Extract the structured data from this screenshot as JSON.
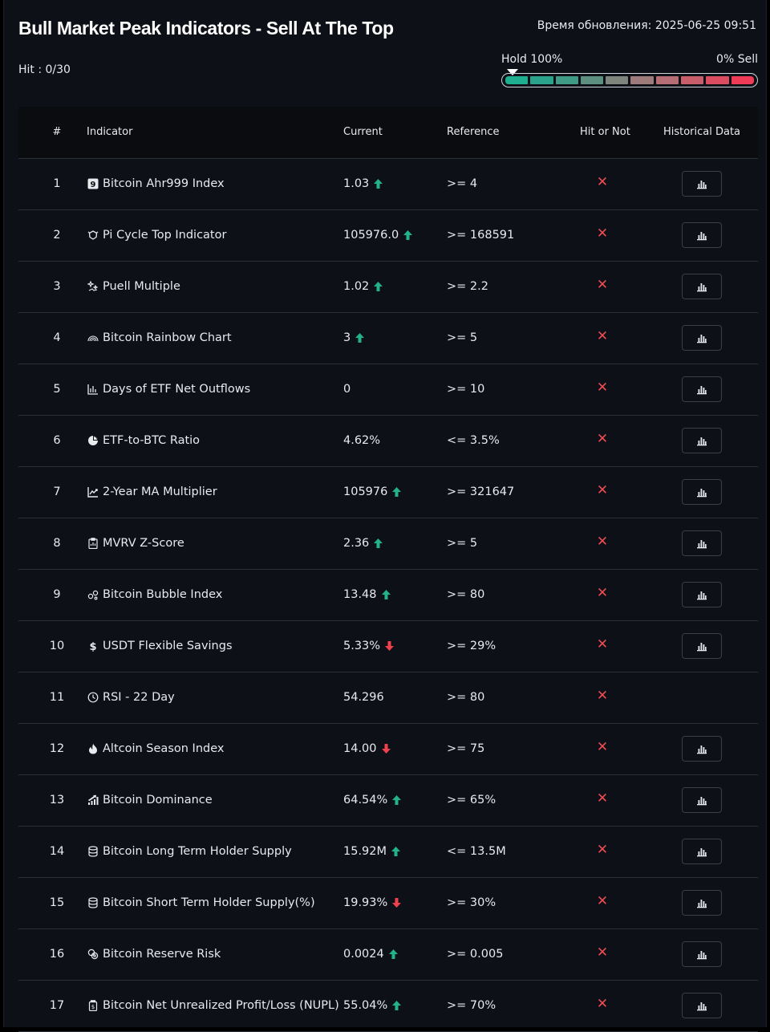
{
  "header": {
    "title": "Bull Market Peak Indicators - Sell At The Top",
    "updated": "Время обновления: 2025-06-25 09:51",
    "hit_count": "Hit : 0/30"
  },
  "meter": {
    "left_label": "Hold 100%",
    "right_label": "0% Sell",
    "segments": [
      "#1fae8f",
      "#2ba38c",
      "#3f9a86",
      "#5c8f80",
      "#7d857d",
      "#9c7b7a",
      "#b46e74",
      "#c85e6a",
      "#dc4c60",
      "#ef3b55"
    ],
    "pointer_level": 0
  },
  "table": {
    "headers": {
      "num": "#",
      "indicator": "Indicator",
      "current": "Current",
      "reference": "Reference",
      "hit": "Hit or Not",
      "history": "Historical Data"
    },
    "colors": {
      "up": "#22b389",
      "down": "#f0424c",
      "miss": "#f04b55"
    },
    "rows": [
      {
        "num": "1",
        "name": "Bitcoin Ahr999 Index",
        "icon": "nine-box-icon",
        "current": "1.03",
        "trend": "up",
        "reference": ">= 4",
        "hit": "✕",
        "history": true
      },
      {
        "num": "2",
        "name": "Pi Cycle Top Indicator",
        "icon": "cycle-icon",
        "current": "105976.0",
        "trend": "up",
        "reference": ">= 168591",
        "hit": "✕",
        "history": true
      },
      {
        "num": "3",
        "name": "Puell Multiple",
        "icon": "sparkle-icon",
        "current": "1.02",
        "trend": "up",
        "reference": ">= 2.2",
        "hit": "✕",
        "history": true
      },
      {
        "num": "4",
        "name": "Bitcoin Rainbow Chart",
        "icon": "rainbow-icon",
        "current": "3",
        "trend": "up",
        "reference": ">= 5",
        "hit": "✕",
        "history": true
      },
      {
        "num": "5",
        "name": "Days of ETF Net Outflows",
        "icon": "bar-chart-icon",
        "current": "0",
        "trend": "",
        "reference": ">= 10",
        "hit": "✕",
        "history": true
      },
      {
        "num": "6",
        "name": "ETF-to-BTC Ratio",
        "icon": "pie-chart-icon",
        "current": "4.62%",
        "trend": "",
        "reference": "<= 3.5%",
        "hit": "✕",
        "history": true
      },
      {
        "num": "7",
        "name": "2-Year MA Multiplier",
        "icon": "trend-line-icon",
        "current": "105976",
        "trend": "up",
        "reference": ">= 321647",
        "hit": "✕",
        "history": true
      },
      {
        "num": "8",
        "name": "MVRV Z-Score",
        "icon": "clipboard-icon",
        "current": "2.36",
        "trend": "up",
        "reference": ">= 5",
        "hit": "✕",
        "history": true
      },
      {
        "num": "9",
        "name": "Bitcoin Bubble Index",
        "icon": "bubbles-icon",
        "current": "13.48",
        "trend": "up",
        "reference": ">= 80",
        "hit": "✕",
        "history": true
      },
      {
        "num": "10",
        "name": "USDT Flexible Savings",
        "icon": "dollar-icon",
        "current": "5.33%",
        "trend": "down",
        "reference": ">= 29%",
        "hit": "✕",
        "history": true
      },
      {
        "num": "11",
        "name": "RSI - 22 Day",
        "icon": "clock-icon",
        "current": "54.296",
        "trend": "",
        "reference": ">= 80",
        "hit": "✕",
        "history": false
      },
      {
        "num": "12",
        "name": "Altcoin Season Index",
        "icon": "flame-icon",
        "current": "14.00",
        "trend": "down",
        "reference": ">= 75",
        "hit": "✕",
        "history": true
      },
      {
        "num": "13",
        "name": "Bitcoin Dominance",
        "icon": "rising-bars-icon",
        "current": "64.54%",
        "trend": "up",
        "reference": ">= 65%",
        "hit": "✕",
        "history": true
      },
      {
        "num": "14",
        "name": "Bitcoin Long Term Holder Supply",
        "icon": "database-icon",
        "current": "15.92M",
        "trend": "up",
        "reference": "<= 13.5M",
        "hit": "✕",
        "history": true
      },
      {
        "num": "15",
        "name": "Bitcoin Short Term Holder Supply(%)",
        "icon": "database-icon",
        "current": "19.93%",
        "trend": "down",
        "reference": ">= 30%",
        "hit": "✕",
        "history": true
      },
      {
        "num": "16",
        "name": "Bitcoin Reserve Risk",
        "icon": "coins-icon",
        "current": "0.0024",
        "trend": "up",
        "reference": ">= 0.005",
        "hit": "✕",
        "history": true
      },
      {
        "num": "17",
        "name": "Bitcoin Net Unrealized Profit/Loss (NUPL)",
        "icon": "wallet-icon",
        "current": "55.04%",
        "trend": "up",
        "reference": ">= 70%",
        "hit": "✕",
        "history": true
      }
    ]
  }
}
